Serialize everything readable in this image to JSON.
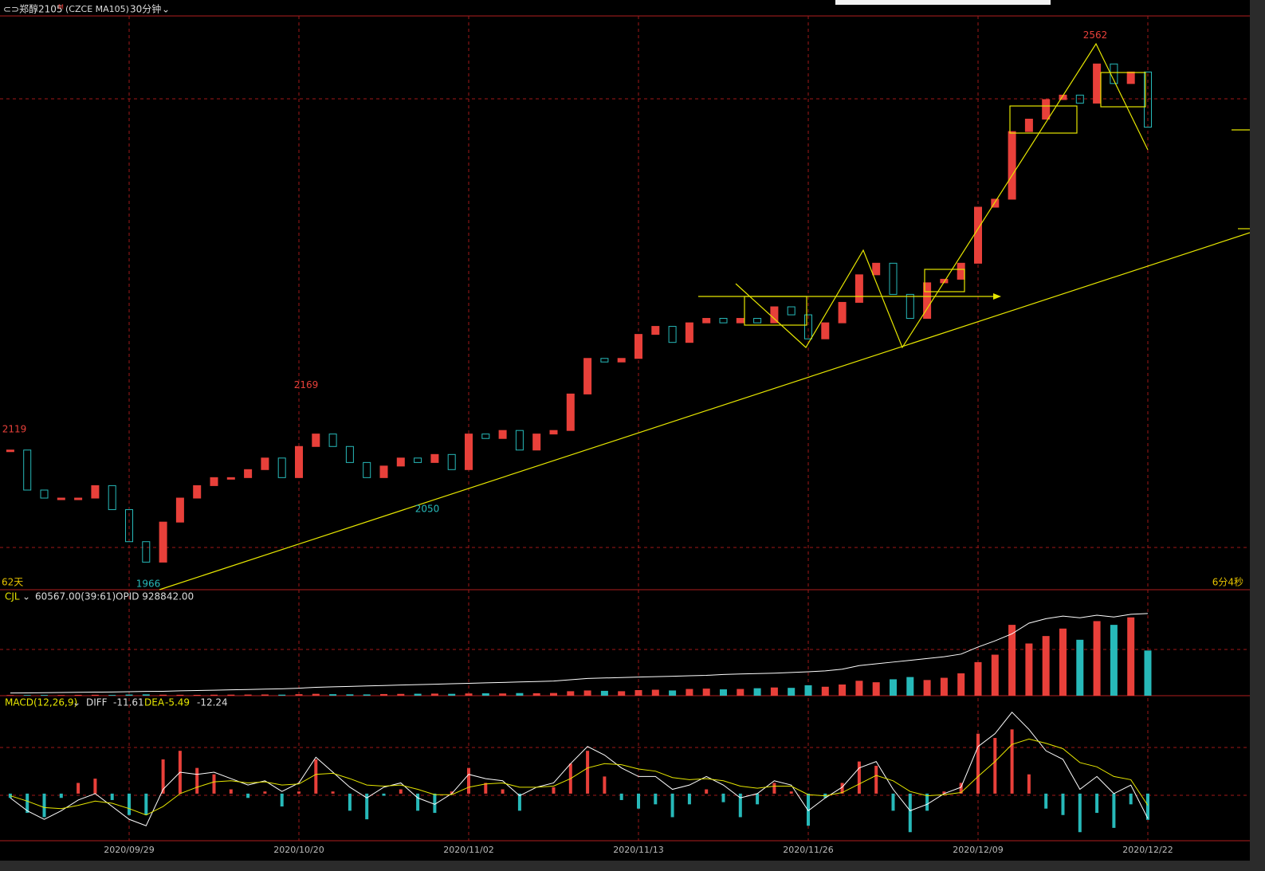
{
  "chart_data": [
    {
      "type": "candlestick",
      "title": "郑醇2105",
      "flag": "M",
      "subtitle": "(CZCE MA105)",
      "period": "30分钟",
      "left_note": "62天",
      "right_note": "6分4秒",
      "up_color": "#e8403a",
      "down_color": "#27b9b9",
      "categories": [
        null,
        null,
        null,
        null,
        null,
        null,
        null,
        "2020/09/29",
        null,
        null,
        null,
        null,
        null,
        null,
        null,
        null,
        null,
        "2020/10/20",
        null,
        null,
        null,
        null,
        null,
        null,
        null,
        null,
        null,
        "2020/11/02",
        null,
        null,
        null,
        null,
        null,
        null,
        null,
        null,
        null,
        "2020/11/13",
        null,
        null,
        null,
        null,
        null,
        null,
        null,
        null,
        null,
        "2020/11/26",
        null,
        null,
        null,
        null,
        null,
        null,
        null,
        null,
        null,
        "2020/12/09",
        null,
        null,
        null,
        null,
        null,
        null,
        null,
        null,
        null,
        "2020/12/22"
      ],
      "close": [
        2105,
        2060,
        2051,
        2051,
        2051,
        2065,
        2038,
        2002,
        1979,
        2024,
        2051,
        2065,
        2074,
        2074,
        2083,
        2096,
        2074,
        2109,
        2123,
        2109,
        2091,
        2074,
        2087,
        2096,
        2091,
        2100,
        2083,
        2123,
        2118,
        2127,
        2105,
        2123,
        2127,
        2168,
        2208,
        2204,
        2208,
        2235,
        2244,
        2226,
        2248,
        2253,
        2248,
        2253,
        2248,
        2266,
        2257,
        2230,
        2248,
        2271,
        2302,
        2315,
        2280,
        2253,
        2293,
        2297,
        2315,
        2378,
        2387,
        2463,
        2477,
        2499,
        2504,
        2495,
        2539,
        2517,
        2530,
        2468
      ],
      "ylim": [
        1948,
        2593
      ],
      "extrema": [
        2119,
        2169,
        2050,
        1966,
        2562
      ]
    },
    {
      "type": "bar",
      "volume_text": "60567.00(39:61)",
      "oi_text": "OPID 928842.00",
      "ylim": [
        0,
        140000
      ],
      "y2lim": [
        0,
        1180000
      ],
      "series": [
        {
          "name": "CJL",
          "values": [
            800,
            900,
            1000,
            900,
            1100,
            1200,
            1000,
            1500,
            1800,
            1300,
            1200,
            1100,
            1300,
            1400,
            1500,
            1600,
            1400,
            2000,
            2500,
            2000,
            1800,
            1700,
            2200,
            2400,
            2600,
            2800,
            2500,
            3000,
            3200,
            3000,
            3500,
            3300,
            3600,
            6000,
            7000,
            6500,
            6000,
            7500,
            8000,
            7000,
            9000,
            9500,
            8500,
            9000,
            10000,
            11000,
            10500,
            14000,
            12000,
            15000,
            20000,
            18000,
            22000,
            25000,
            21000,
            24000,
            30000,
            45000,
            55000,
            95000,
            70000,
            80000,
            90000,
            75000,
            100000,
            95000,
            105000,
            60567
          ]
        },
        {
          "axis": "y2",
          "color": "#ffffff",
          "values": [
            30000,
            32000,
            34000,
            36000,
            38000,
            40000,
            42000,
            45000,
            48000,
            50000,
            55000,
            58000,
            62000,
            66000,
            70000,
            74000,
            78000,
            85000,
            95000,
            100000,
            105000,
            110000,
            115000,
            120000,
            125000,
            130000,
            135000,
            140000,
            145000,
            150000,
            155000,
            160000,
            165000,
            180000,
            195000,
            200000,
            205000,
            210000,
            215000,
            220000,
            225000,
            230000,
            240000,
            245000,
            250000,
            255000,
            262000,
            270000,
            280000,
            300000,
            340000,
            360000,
            380000,
            400000,
            420000,
            440000,
            470000,
            550000,
            620000,
            700000,
            820000,
            870000,
            900000,
            880000,
            910000,
            890000,
            920000,
            928842
          ]
        }
      ]
    },
    {
      "type": "macd",
      "title": "MACD(12,26,9)",
      "ylim": [
        -22,
        45
      ],
      "series": [
        {
          "name": "DIFF",
          "color": "#ffffff",
          "values": [
            -2,
            -8,
            -12,
            -8,
            -3,
            0,
            -6,
            -12,
            -15,
            2,
            10,
            9,
            10,
            7,
            4,
            6,
            1,
            5,
            17,
            10,
            3,
            -2,
            3,
            5,
            -2,
            -5,
            0,
            9,
            7,
            6,
            -1,
            3,
            5,
            14,
            22,
            18,
            12,
            8,
            8,
            2,
            4,
            8,
            4,
            -2,
            0,
            6,
            4,
            -8,
            -2,
            3,
            12,
            15,
            2,
            -8,
            -5,
            0,
            3,
            22,
            28,
            38,
            30,
            20,
            16,
            2,
            8,
            0,
            4,
            -11.61
          ]
        },
        {
          "name": "DEA",
          "color": "#e6e600",
          "values": [
            -1,
            -3.5,
            -6.5,
            -7,
            -5.5,
            -3.5,
            -4.5,
            -7,
            -10,
            -6,
            0,
            3,
            5.5,
            6,
            5,
            5.5,
            4,
            4.5,
            9,
            9.5,
            7,
            4,
            3.5,
            4,
            2,
            -0.5,
            -0.5,
            3,
            4.5,
            5,
            3,
            3,
            3.5,
            7,
            12,
            14,
            13.5,
            11.5,
            10.5,
            7.5,
            6.5,
            7,
            6,
            3.5,
            2.5,
            3.5,
            3.5,
            -0.5,
            -1,
            0.5,
            4.5,
            8.5,
            6,
            1,
            -1,
            -0.5,
            0.5,
            8,
            15,
            23,
            25.5,
            23.5,
            21,
            14.5,
            12.5,
            8,
            6.5,
            -5.49
          ]
        }
      ],
      "histogram": [
        -2,
        -9,
        -11,
        -2,
        5,
        7,
        -3,
        -10,
        -10,
        16,
        20,
        12,
        9,
        2,
        -2,
        1,
        -6,
        1,
        16,
        1,
        -8,
        -12,
        -1,
        2,
        -8,
        -9,
        1,
        12,
        5,
        2,
        -8,
        0,
        3,
        14,
        20,
        8,
        -3,
        -7,
        -5,
        -11,
        -5,
        2,
        -4,
        -11,
        -5,
        5,
        1,
        -15,
        -2,
        5,
        15,
        13,
        -8,
        -18,
        -8,
        1,
        5,
        28,
        26,
        30,
        9,
        -7,
        -10,
        -18,
        -9,
        -16,
        -5,
        -12.24
      ]
    }
  ]
}
